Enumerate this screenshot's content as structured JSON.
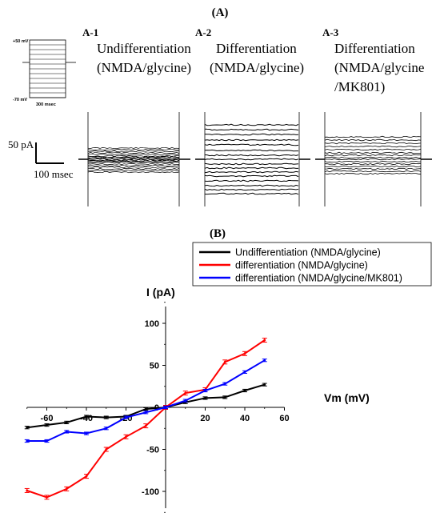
{
  "panel_a": {
    "label": "(A)",
    "protocol": {
      "top_label": "+50 mV",
      "bottom_label": "-70 mV",
      "duration_label": "300 msec"
    },
    "scale_bar": {
      "current_label": "50 pA",
      "time_label": "100 msec"
    },
    "subpanels": [
      {
        "id": "A-1",
        "title_line1": "Undifferentiation",
        "title_line2": "(NMDA/glycine)",
        "title_line3": ""
      },
      {
        "id": "A-2",
        "title_line1": "Differentiation",
        "title_line2": "(NMDA/glycine)",
        "title_line3": ""
      },
      {
        "id": "A-3",
        "title_line1": "Differentiation",
        "title_line2": "(NMDA/glycine",
        "title_line3": "/MK801)"
      }
    ]
  },
  "panel_b": {
    "label": "(B)"
  },
  "chart_data": {
    "type": "line",
    "xlabel": "Vm (mV)",
    "ylabel": "I (pA)",
    "xlim": [
      -70,
      60
    ],
    "ylim": [
      -120,
      120
    ],
    "xticks": [
      -60,
      -40,
      -20,
      0,
      20,
      40,
      60
    ],
    "yticks": [
      -100,
      -50,
      0,
      50,
      100
    ],
    "legend_position": "top-right",
    "x": [
      -70,
      -60,
      -50,
      -40,
      -30,
      -20,
      -10,
      0,
      10,
      20,
      30,
      40,
      50
    ],
    "series": [
      {
        "name": "Undifferentiation (NMDA/glycine)",
        "color": "#000000",
        "values": [
          -24,
          -21,
          -18,
          -11,
          -12,
          -11,
          -2,
          0,
          6,
          11,
          12,
          20,
          27
        ]
      },
      {
        "name": "differentiation (NMDA/glycine)",
        "color": "#ff0000",
        "values": [
          -99,
          -107,
          -97,
          -82,
          -50,
          -35,
          -22,
          0,
          17,
          21,
          54,
          64,
          80
        ]
      },
      {
        "name": "differentiation (NMDA/glycine/MK801)",
        "color": "#0000ff",
        "values": [
          -40,
          -40,
          -29,
          -31,
          -25,
          -12,
          -6,
          0,
          8,
          20,
          28,
          42,
          56
        ]
      }
    ]
  }
}
